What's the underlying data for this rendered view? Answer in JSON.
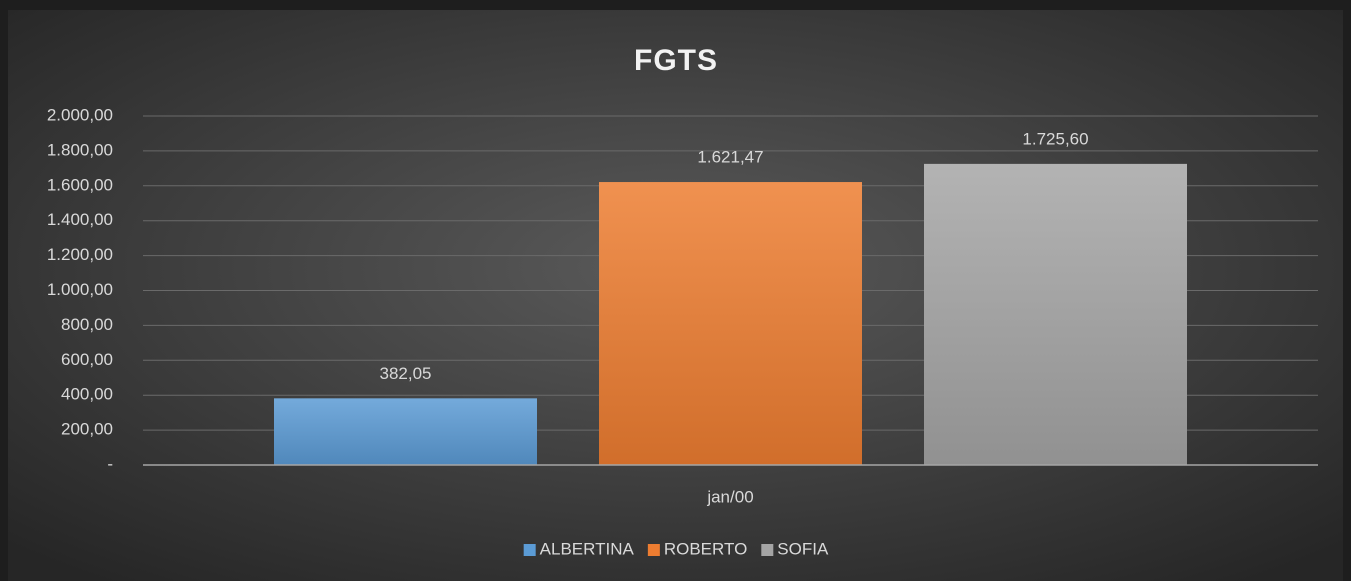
{
  "chart_data": {
    "type": "bar",
    "title": "FGTS",
    "categories": [
      "jan/00"
    ],
    "series": [
      {
        "name": "ALBERTINA",
        "color": "#5b9bd5",
        "values": [
          382.05
        ],
        "value_labels": [
          "382,05"
        ]
      },
      {
        "name": "ROBERTO",
        "color": "#ed7d31",
        "values": [
          1621.47
        ],
        "value_labels": [
          "1.621,47"
        ]
      },
      {
        "name": "SOFIA",
        "color": "#a5a5a5",
        "values": [
          1725.6
        ],
        "value_labels": [
          "1.725,60"
        ]
      }
    ],
    "ylim": [
      0,
      2000
    ],
    "yticks": [
      {
        "value": 0,
        "label": "-"
      },
      {
        "value": 200,
        "label": "200,00"
      },
      {
        "value": 400,
        "label": "400,00"
      },
      {
        "value": 600,
        "label": "600,00"
      },
      {
        "value": 800,
        "label": "800,00"
      },
      {
        "value": 1000,
        "label": "1.000,00"
      },
      {
        "value": 1200,
        "label": "1.200,00"
      },
      {
        "value": 1400,
        "label": "1.400,00"
      },
      {
        "value": 1600,
        "label": "1.600,00"
      },
      {
        "value": 1800,
        "label": "1.800,00"
      },
      {
        "value": 2000,
        "label": "2.000,00"
      }
    ],
    "grid": true,
    "legend": "bottom"
  }
}
